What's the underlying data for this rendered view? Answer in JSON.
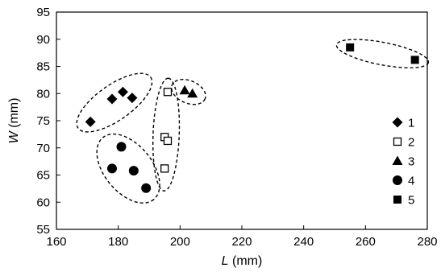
{
  "chart_data": {
    "type": "scatter",
    "title": "",
    "xlabel": {
      "var": "L",
      "unit": " (mm)"
    },
    "ylabel": {
      "var": "W",
      "unit": " (mm)"
    },
    "xlim": [
      160,
      280
    ],
    "ylim": [
      55,
      95
    ],
    "xticks": [
      160,
      180,
      200,
      220,
      240,
      260,
      280
    ],
    "yticks": [
      55,
      60,
      65,
      70,
      75,
      80,
      85,
      90,
      95
    ],
    "grid": false,
    "legend_position": "right",
    "series": [
      {
        "name": "1",
        "marker": "diamond-filled",
        "points": [
          [
            171,
            74.8
          ],
          [
            178,
            79
          ],
          [
            181.5,
            80.3
          ],
          [
            184.5,
            79.2
          ]
        ]
      },
      {
        "name": "2",
        "marker": "square-open",
        "points": [
          [
            196,
            80.3
          ],
          [
            195,
            72
          ],
          [
            196,
            71.3
          ],
          [
            195,
            66.2
          ]
        ]
      },
      {
        "name": "3",
        "marker": "triangle-filled",
        "points": [
          [
            201.5,
            80.6
          ],
          [
            204,
            80
          ]
        ]
      },
      {
        "name": "4",
        "marker": "circle-filled",
        "points": [
          [
            181,
            70.2
          ],
          [
            178,
            66.2
          ],
          [
            185,
            65.8
          ],
          [
            189,
            62.6
          ]
        ]
      },
      {
        "name": "5",
        "marker": "square-filled",
        "points": [
          [
            255,
            88.5
          ],
          [
            276,
            86.2
          ]
        ]
      }
    ],
    "annotations": [
      {
        "shape": "dashed-ellipse",
        "group": "1"
      },
      {
        "shape": "dashed-ellipse",
        "group": "2"
      },
      {
        "shape": "dashed-ellipse",
        "group": "3"
      },
      {
        "shape": "dashed-ellipse",
        "group": "4"
      },
      {
        "shape": "dashed-ellipse",
        "group": "5"
      }
    ]
  }
}
